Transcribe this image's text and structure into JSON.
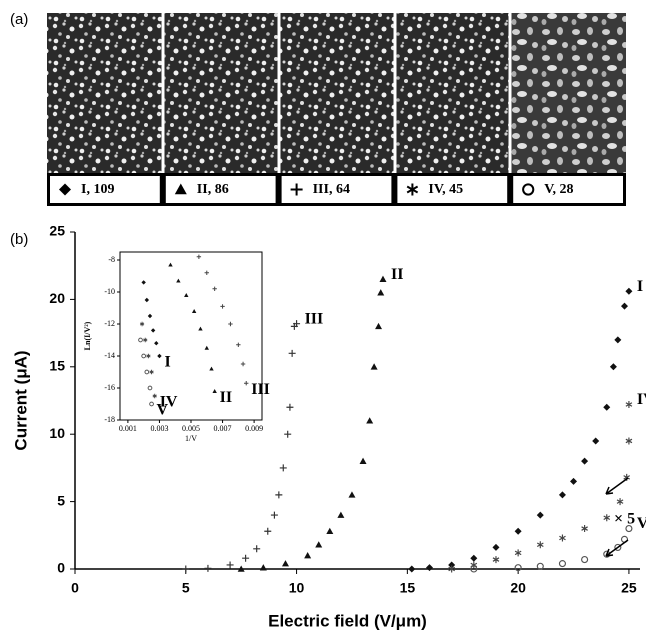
{
  "panel_labels": [
    "(a)",
    "(b)"
  ],
  "samples": [
    {
      "label": "I, 109",
      "marker": "diamond"
    },
    {
      "label": "II, 86",
      "marker": "triangle"
    },
    {
      "label": "III, 64",
      "marker": "plus"
    },
    {
      "label": "IV, 45",
      "marker": "asterisk"
    },
    {
      "label": "V, 28",
      "marker": "circle"
    }
  ],
  "chart_data": [
    {
      "type": "scatter",
      "xlabel": "Electric field (V/μm)",
      "ylabel": "Current (μA)",
      "xlim": [
        0,
        25.5
      ],
      "ylim": [
        0,
        25
      ],
      "xticks": [
        0,
        5,
        10,
        15,
        20,
        25
      ],
      "yticks": [
        0,
        5,
        10,
        15,
        20,
        25
      ],
      "annotations": [
        "× 5"
      ],
      "series": [
        {
          "name": "I",
          "marker": "diamond",
          "color": "#111111",
          "x": [
            15.2,
            16,
            17,
            18,
            19,
            20,
            21,
            22,
            22.5,
            23,
            23.5,
            24,
            24.3,
            24.5,
            24.8,
            25
          ],
          "y": [
            0,
            0.1,
            0.3,
            0.8,
            1.6,
            2.8,
            4,
            5.5,
            6.5,
            8,
            9.5,
            12,
            15,
            17,
            19.5,
            20.6
          ]
        },
        {
          "name": "II",
          "marker": "triangle",
          "color": "#111111",
          "x": [
            7.5,
            8.5,
            9.5,
            10.5,
            11,
            11.5,
            12,
            12.5,
            13,
            13.3,
            13.5,
            13.7,
            13.8,
            13.9
          ],
          "y": [
            0,
            0.1,
            0.4,
            1,
            1.8,
            2.8,
            4,
            5.5,
            8,
            11,
            15,
            18,
            20.5,
            21.5
          ]
        },
        {
          "name": "III",
          "marker": "plus",
          "color": "#333333",
          "x": [
            5,
            6,
            7,
            7.7,
            8.2,
            8.7,
            9,
            9.2,
            9.4,
            9.6,
            9.7,
            9.8,
            9.9,
            10
          ],
          "y": [
            0,
            0.05,
            0.3,
            0.8,
            1.5,
            2.8,
            4,
            5.5,
            7.5,
            10,
            12,
            16,
            18,
            18.2
          ]
        },
        {
          "name": "IV",
          "marker": "asterisk",
          "color": "#444444",
          "x": [
            17,
            18,
            19,
            20,
            21,
            22,
            23,
            24,
            24.6,
            24.9,
            25,
            25
          ],
          "y": [
            0,
            0.3,
            0.7,
            1.2,
            1.8,
            2.3,
            3,
            3.8,
            5,
            6.8,
            9.5,
            12.2
          ]
        },
        {
          "name": "V",
          "marker": "circle",
          "color": "#555555",
          "x": [
            18,
            20,
            21,
            22,
            23,
            24,
            24.5,
            24.8,
            25
          ],
          "y": [
            0,
            0.1,
            0.2,
            0.4,
            0.7,
            1.1,
            1.6,
            2.2,
            3
          ]
        }
      ]
    },
    {
      "type": "scatter",
      "xlabel": "1/V",
      "ylabel": "Ln(I/V²)",
      "xlim": [
        0.0005,
        0.0095
      ],
      "ylim": [
        -18,
        -7.5
      ],
      "xticks": [
        0.001,
        0.003,
        0.005,
        0.007,
        0.009
      ],
      "yticks": [
        -18,
        -16,
        -14,
        -12,
        -10,
        -8
      ],
      "series": [
        {
          "name": "I",
          "marker": "diamond",
          "color": "#111111",
          "x": [
            0.002,
            0.0022,
            0.0024,
            0.0026,
            0.0028,
            0.003
          ],
          "y": [
            -9.4,
            -10.5,
            -11.5,
            -12.4,
            -13.2,
            -14
          ]
        },
        {
          "name": "II",
          "marker": "triangle",
          "color": "#111111",
          "x": [
            0.0037,
            0.0042,
            0.0047,
            0.0052,
            0.0056,
            0.006,
            0.0063,
            0.0065
          ],
          "y": [
            -8.3,
            -9.3,
            -10.2,
            -11.2,
            -12.3,
            -13.5,
            -14.8,
            -16.2
          ]
        },
        {
          "name": "III",
          "marker": "plus",
          "color": "#444444",
          "x": [
            0.0055,
            0.006,
            0.0065,
            0.007,
            0.0075,
            0.008,
            0.0083,
            0.0085
          ],
          "y": [
            -7.8,
            -8.8,
            -9.8,
            -10.9,
            -12,
            -13.3,
            -14.5,
            -15.7
          ]
        },
        {
          "name": "IV",
          "marker": "asterisk",
          "color": "#444444",
          "x": [
            0.0019,
            0.0021,
            0.0023,
            0.0025,
            0.0027
          ],
          "y": [
            -12,
            -13,
            -14,
            -15,
            -16.5
          ]
        },
        {
          "name": "V",
          "marker": "circle",
          "color": "#555555",
          "x": [
            0.0018,
            0.002,
            0.0022,
            0.0024,
            0.0025
          ],
          "y": [
            -13,
            -14,
            -15,
            -16,
            -17
          ]
        }
      ]
    }
  ]
}
